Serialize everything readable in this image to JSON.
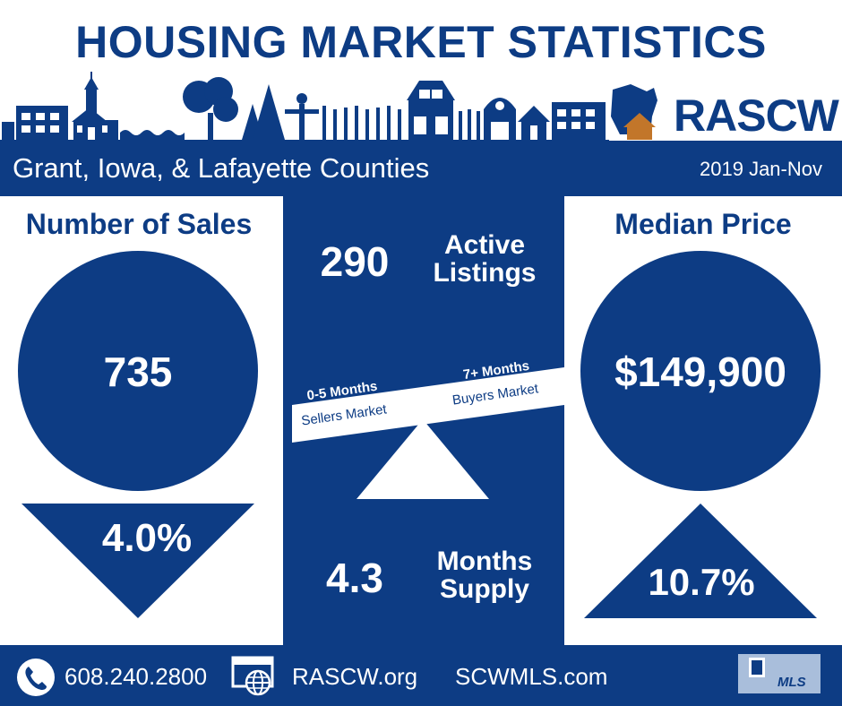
{
  "title": "HOUSING MARKET STATISTICS",
  "brand": "RASCW",
  "region": "Grant, Iowa, & Lafayette Counties",
  "period": "2019 Jan-Nov",
  "sales": {
    "title": "Number of Sales",
    "value": "735",
    "change": "4.0%"
  },
  "median": {
    "title": "Median Price",
    "value": "$149,900",
    "change": "10.7%"
  },
  "active": {
    "value": "290",
    "label_line1": "Active",
    "label_line2": "Listings"
  },
  "months_supply": {
    "value": "4.3",
    "label_line1": "Months",
    "label_line2": "Supply"
  },
  "balance": {
    "low_range": "0-5 Months",
    "low_label": "Sellers Market",
    "high_range": "7+ Months",
    "high_label": "Buyers Market"
  },
  "footer": {
    "phone": "608.240.2800",
    "site1": "RASCW.org",
    "site2": "SCWMLS.com",
    "badge": "MLS"
  },
  "icons": [
    "skyline-illustration",
    "wisconsin-home-icon",
    "phone-icon",
    "web-icon",
    "realtor-mls-logo"
  ],
  "colors": {
    "navy": "#0d3c84",
    "white": "#ffffff"
  }
}
